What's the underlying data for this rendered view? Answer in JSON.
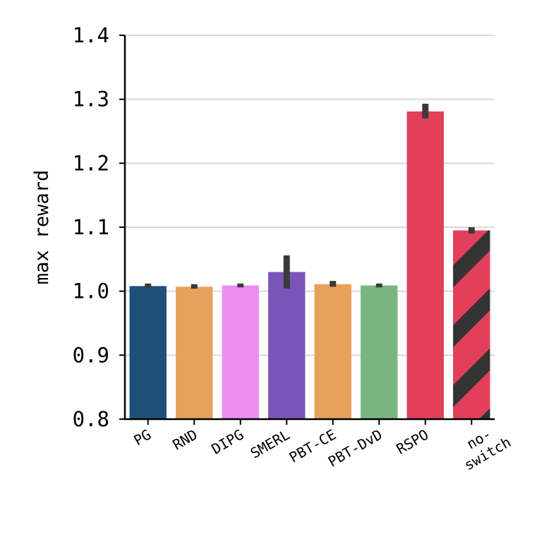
{
  "chart_data": {
    "type": "bar",
    "title": "",
    "xlabel": "",
    "ylabel": "max reward",
    "ylim": [
      0.8,
      1.4
    ],
    "yticks": [
      "0.8",
      "0.9",
      "1.0",
      "1.1",
      "1.2",
      "1.3",
      "1.4"
    ],
    "grid": "horizontal",
    "categories": [
      "PG",
      "RND",
      "DIPG",
      "SMERL",
      "PBT-CE",
      "PBT-DvD",
      "RSPO",
      "no-\nswitch"
    ],
    "values": [
      1.008,
      1.007,
      1.009,
      1.03,
      1.011,
      1.009,
      1.281,
      1.095
    ],
    "error_low": [
      1.005,
      1.004,
      1.006,
      1.004,
      1.007,
      1.006,
      1.27,
      1.09
    ],
    "error_high": [
      1.012,
      1.011,
      1.012,
      1.056,
      1.016,
      1.012,
      1.293,
      1.1
    ],
    "colors": [
      "#1f4e79",
      "#e8a15a",
      "#ee8def",
      "#7a55b9",
      "#e8a15a",
      "#79b67f",
      "#e13f5a",
      "#e13f5a"
    ],
    "hatched": [
      false,
      false,
      false,
      false,
      false,
      false,
      false,
      true
    ],
    "hatch_color": "#333333"
  }
}
